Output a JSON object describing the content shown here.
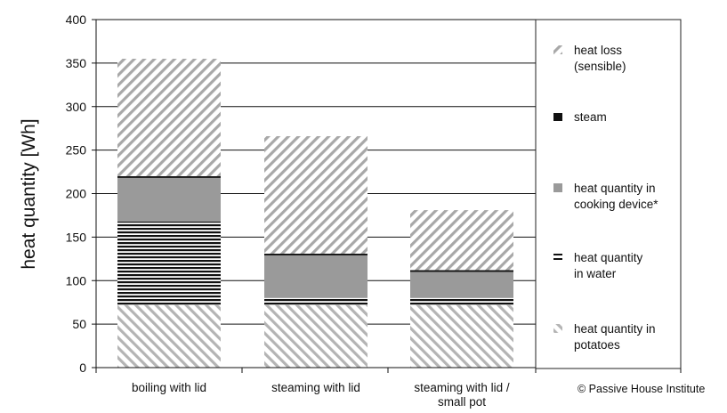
{
  "chart_data": {
    "type": "bar",
    "stacked": true,
    "ylabel": "heat quantity [Wh]",
    "ylim": [
      0,
      400
    ],
    "yticks": [
      0,
      50,
      100,
      150,
      200,
      250,
      300,
      350,
      400
    ],
    "grid": true,
    "legend_position": "right",
    "categories": [
      "boiling with lid",
      "steaming with lid",
      "steaming with lid / small pot"
    ],
    "category_lines": [
      [
        "boiling with lid"
      ],
      [
        "steaming with lid"
      ],
      [
        "steaming with lid /",
        "small pot"
      ]
    ],
    "series": [
      {
        "name": "heat quantity in potatoes",
        "legend_lines": [
          "heat quantity in",
          "potatoes"
        ],
        "pattern": "backslash-hatch",
        "values": [
          72,
          72,
          72
        ]
      },
      {
        "name": "heat quantity in water",
        "legend_lines": [
          "heat quantity",
          "in water"
        ],
        "pattern": "horizontal-lines",
        "values": [
          96,
          8,
          8
        ]
      },
      {
        "name": "heat quantity in cooking device*",
        "legend_lines": [
          "heat quantity in",
          "cooking device*"
        ],
        "pattern": "solid-gray",
        "values": [
          50,
          49,
          30
        ]
      },
      {
        "name": "steam",
        "legend_lines": [
          "steam"
        ],
        "pattern": "solid-black",
        "values": [
          2,
          2,
          2
        ]
      },
      {
        "name": "heat loss (sensible)",
        "legend_lines": [
          "heat loss",
          "(sensible)"
        ],
        "pattern": "slash-hatch",
        "values": [
          135,
          135,
          69
        ]
      }
    ],
    "colors": {
      "gray": "#9a9a9a",
      "black": "#111111",
      "hatch": "#a8a8a8"
    }
  },
  "credit": "© Passive House Institute"
}
